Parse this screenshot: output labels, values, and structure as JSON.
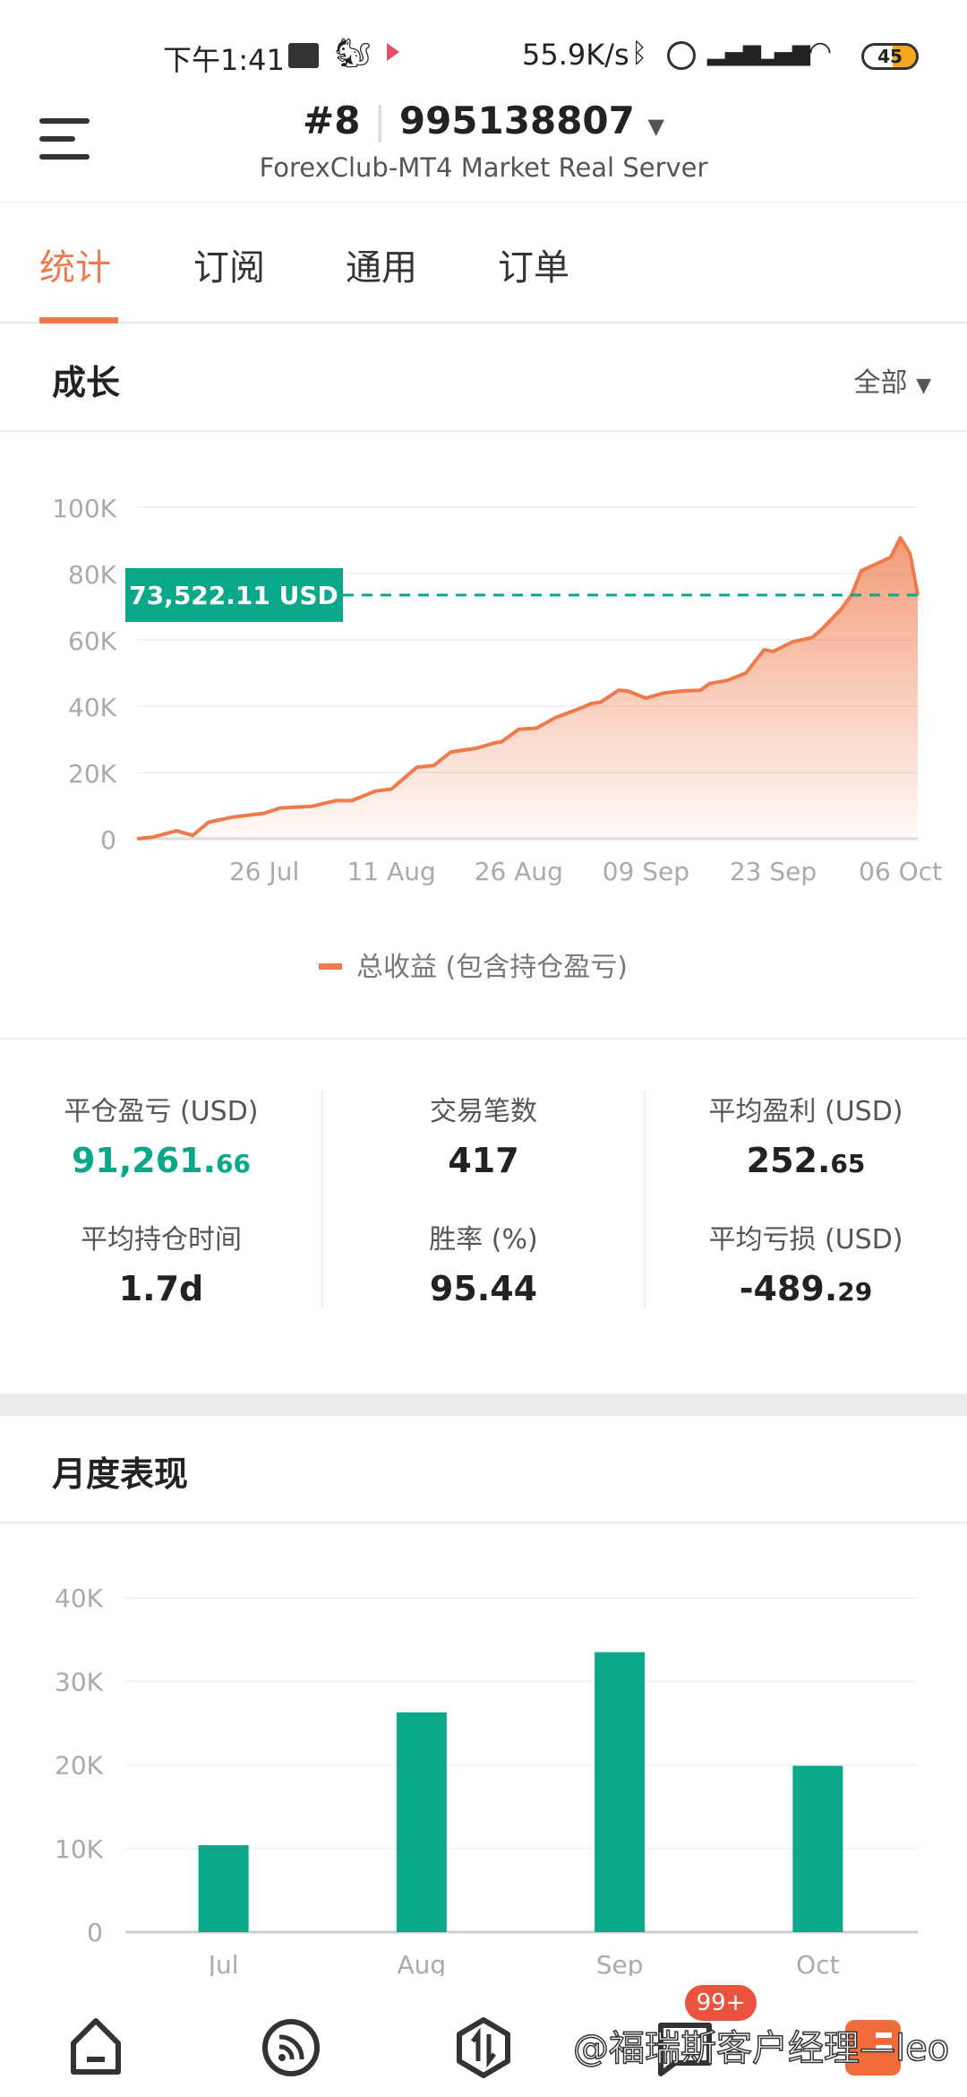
{
  "status_bar": {
    "time": "下午1:41",
    "speed": "55.9K/s",
    "battery": "45"
  },
  "header": {
    "account_index": "#8",
    "account_number": "995138807",
    "server": "ForexClub-MT4 Market Real Server"
  },
  "tabs": [
    {
      "label": "统计",
      "active": true
    },
    {
      "label": "订阅"
    },
    {
      "label": "通用"
    },
    {
      "label": "订单"
    }
  ],
  "growth": {
    "title": "成长",
    "range_label": "全部",
    "current_label": "73,522.11 USD",
    "current_value": 73522.11
  },
  "stats": {
    "closed_pl": {
      "label": "平仓盈亏 (USD)",
      "int": "91,261.",
      "dec": "66",
      "color": "#0aa88a"
    },
    "trades": {
      "label": "交易笔数",
      "value": "417"
    },
    "avg_profit": {
      "label": "平均盈利 (USD)",
      "int": "252.",
      "dec": "65"
    },
    "avg_hold": {
      "label": "平均持仓时间",
      "value": "1.7d"
    },
    "win_rate": {
      "label": "胜率 (%)",
      "value": "95.44"
    },
    "avg_loss": {
      "label": "平均亏损 (USD)",
      "int": "-489.",
      "dec": "29"
    }
  },
  "monthly": {
    "title": "月度表现"
  },
  "nav": {
    "badge": "99+",
    "watermark": "@福瑞斯客户经理—leo"
  },
  "colors": {
    "accent": "#ef7a4c",
    "teal": "#0aa88a"
  },
  "chart_data": [
    {
      "type": "area",
      "ylim": [
        0,
        100000
      ],
      "yticks": [
        "0",
        "20K",
        "40K",
        "60K",
        "80K",
        "100K"
      ],
      "ytick_values": [
        0,
        20000,
        40000,
        60000,
        80000,
        100000
      ],
      "xticks": [
        "26 Jul",
        "11 Aug",
        "26 Aug",
        "09 Sep",
        "23 Sep",
        "06 Oct"
      ],
      "xtick_dates": [
        "07-26",
        "08-11",
        "08-26",
        "09-09",
        "09-23",
        "10-06"
      ],
      "grid": true,
      "legend": "bottom",
      "series": [
        {
          "name": "总收益 (包含持仓盈亏)",
          "color": "#ef7a4c",
          "x": [
            "07-10",
            "07-12",
            "07-15",
            "07-17",
            "07-19",
            "07-22",
            "07-26",
            "07-28",
            "08-01",
            "08-04",
            "08-06",
            "08-09",
            "08-11",
            "08-14",
            "08-16",
            "08-18",
            "08-21",
            "08-23",
            "08-24",
            "08-26",
            "08-28",
            "08-30",
            "09-02",
            "09-03",
            "09-04",
            "09-06",
            "09-07",
            "09-09",
            "09-11",
            "09-13",
            "09-15",
            "09-16",
            "09-18",
            "09-20",
            "09-22",
            "09-23",
            "09-25",
            "09-27",
            "09-28",
            "09-30",
            "10-01",
            "10-02",
            "10-05",
            "10-06",
            "10-07",
            "10-08"
          ],
          "y": [
            0,
            500,
            2400,
            1000,
            5000,
            6500,
            7700,
            9300,
            9800,
            11500,
            11500,
            14400,
            15000,
            21600,
            22100,
            26200,
            27300,
            28800,
            29300,
            33000,
            33400,
            36500,
            39600,
            40800,
            41200,
            44800,
            44600,
            42400,
            44000,
            44600,
            44800,
            46800,
            47800,
            50000,
            57000,
            56500,
            59400,
            60700,
            63300,
            69400,
            73600,
            80800,
            84900,
            90800,
            85900,
            73522
          ]
        }
      ]
    },
    {
      "type": "bar",
      "ylim": [
        0,
        40000
      ],
      "yticks": [
        "0",
        "10K",
        "20K",
        "30K",
        "40K"
      ],
      "ytick_values": [
        0,
        10000,
        20000,
        30000,
        40000
      ],
      "grid": true,
      "categories": [
        "Jul",
        "Aug",
        "Sep",
        "Oct"
      ],
      "values": [
        10400,
        26300,
        33500,
        19900
      ],
      "color": "#0aa88a"
    }
  ]
}
